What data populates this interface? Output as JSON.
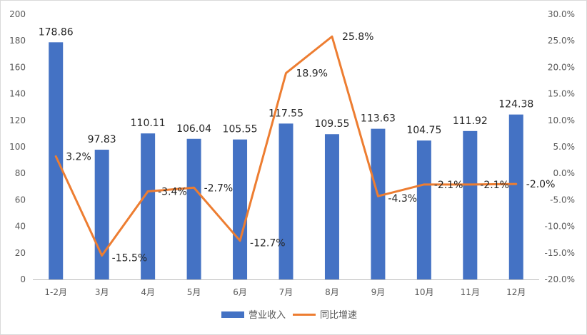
{
  "chart_data": {
    "type": "bar",
    "categories": [
      "1-2月",
      "3月",
      "4月",
      "5月",
      "6月",
      "7月",
      "8月",
      "9月",
      "10月",
      "11月",
      "12月"
    ],
    "series": [
      {
        "name": "营业收入",
        "type": "bar",
        "axis": "left",
        "values": [
          178.86,
          97.83,
          110.11,
          106.04,
          105.55,
          117.55,
          109.55,
          113.63,
          104.75,
          111.92,
          124.38
        ],
        "labels": [
          "178.86",
          "97.83",
          "110.11",
          "106.04",
          "105.55",
          "117.55",
          "109.55",
          "113.63",
          "104.75",
          "111.92",
          "124.38"
        ],
        "color": "#4472C4"
      },
      {
        "name": "同比增速",
        "type": "line",
        "axis": "right",
        "values": [
          3.2,
          -15.5,
          -3.4,
          -2.7,
          -12.7,
          18.9,
          25.8,
          -4.3,
          -2.1,
          -2.1,
          -2.0
        ],
        "labels": [
          "3.2%",
          "-15.5%",
          "-3.4%",
          "-2.7%",
          "-12.7%",
          "18.9%",
          "25.8%",
          "-4.3%",
          "-2.1%",
          "-2.1%",
          "-2.0%"
        ],
        "color": "#ED7D31"
      }
    ],
    "y_left": {
      "range": [
        0,
        200
      ],
      "ticks": [
        0,
        20,
        40,
        60,
        80,
        100,
        120,
        140,
        160,
        180,
        200
      ],
      "tick_labels": [
        "0",
        "20",
        "40",
        "60",
        "80",
        "100",
        "120",
        "140",
        "160",
        "180",
        "200"
      ]
    },
    "y_right": {
      "range": [
        -20,
        30
      ],
      "ticks": [
        -20,
        -15,
        -10,
        -5,
        0,
        5,
        10,
        15,
        20,
        25,
        30
      ],
      "tick_labels": [
        "-20.0%",
        "-15.0%",
        "-10.0%",
        "-5.0%",
        "0.0%",
        "5.0%",
        "10.0%",
        "15.0%",
        "20.0%",
        "25.0%",
        "30.0%"
      ]
    },
    "grid": false,
    "legend_position": "bottom-center",
    "border_color": "#D9D9D9",
    "axis_color": "#BFBFBF"
  }
}
